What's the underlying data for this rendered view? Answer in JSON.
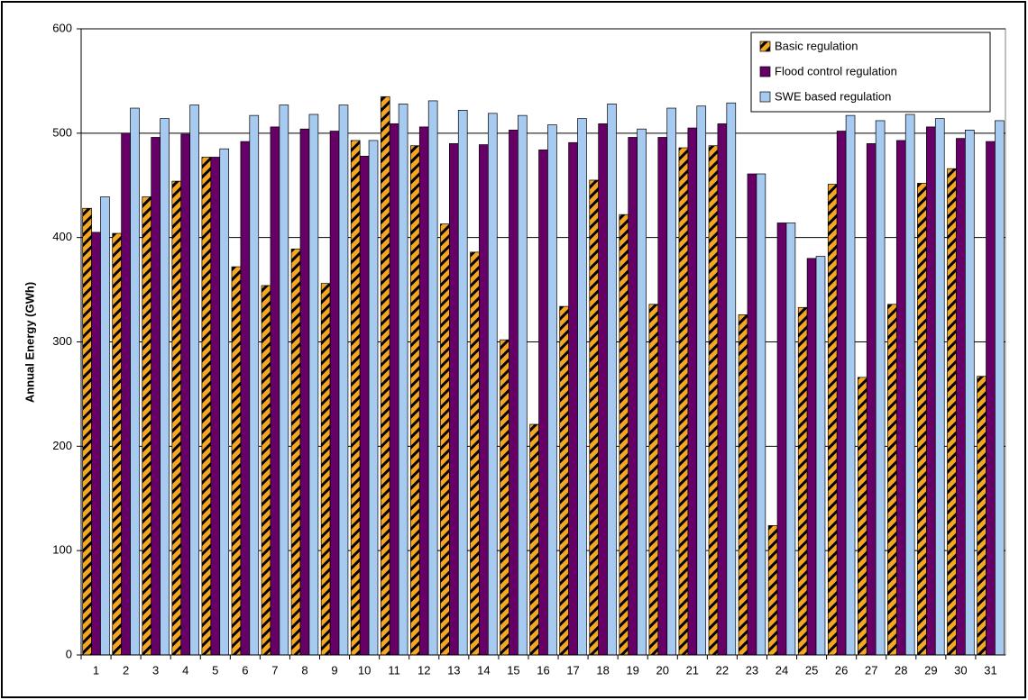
{
  "chart_data": {
    "type": "bar",
    "y_label": "Annual Energy (GWh)",
    "categories": [
      "1",
      "2",
      "3",
      "4",
      "5",
      "6",
      "7",
      "8",
      "9",
      "10",
      "11",
      "12",
      "13",
      "14",
      "15",
      "16",
      "17",
      "18",
      "19",
      "20",
      "21",
      "22",
      "23",
      "24",
      "25",
      "26",
      "27",
      "28",
      "29",
      "30",
      "31"
    ],
    "series": [
      {
        "name": "Basic regulation",
        "color": "#f5a623",
        "pattern": "stripes",
        "values": [
          428,
          404,
          439,
          454,
          477,
          372,
          354,
          389,
          356,
          493,
          535,
          488,
          413,
          386,
          302,
          221,
          334,
          455,
          422,
          336,
          486,
          488,
          326,
          124,
          333,
          451,
          266,
          336,
          452,
          466,
          267
        ]
      },
      {
        "name": "Flood control regulation",
        "color": "#660066",
        "values": [
          405,
          500,
          496,
          499,
          477,
          492,
          506,
          504,
          502,
          478,
          509,
          506,
          490,
          489,
          503,
          484,
          491,
          509,
          496,
          496,
          505,
          509,
          461,
          414,
          380,
          502,
          490,
          493,
          506,
          495,
          492
        ]
      },
      {
        "name": "SWE based regulation",
        "color": "#a6caf0",
        "values": [
          439,
          524,
          514,
          527,
          485,
          517,
          527,
          518,
          527,
          493,
          528,
          531,
          522,
          519,
          517,
          508,
          514,
          528,
          504,
          524,
          526,
          529,
          461,
          414,
          382,
          517,
          512,
          518,
          514,
          503,
          512
        ]
      }
    ],
    "ylim": [
      0,
      600
    ],
    "yticks": [
      0,
      100,
      200,
      300,
      400,
      500,
      600
    ],
    "grid": true,
    "legend": "top-right"
  }
}
